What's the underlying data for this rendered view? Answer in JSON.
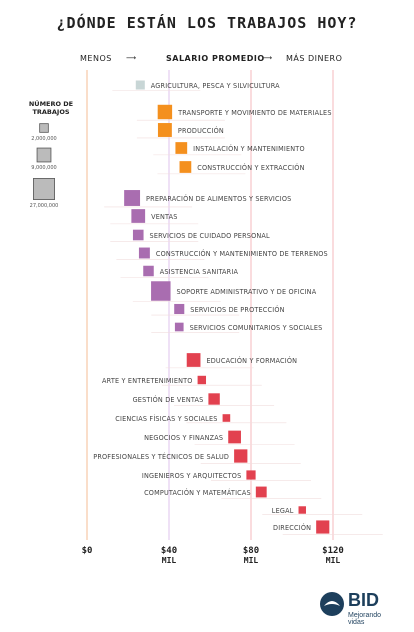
{
  "title": "¿DÓNDE ESTÁN LOS TRABAJOS HOY?",
  "header": {
    "left": "MENOS",
    "center": "SALARIO PROMEDIO",
    "right": "MÁS DINERO"
  },
  "legend": {
    "title": "NÚMERO DE TRABAJOS",
    "items": [
      {
        "label": "2,000,000",
        "value": 2000000
      },
      {
        "label": "9,000,000",
        "value": 9000000
      },
      {
        "label": "27,000,000",
        "value": 27000000
      }
    ]
  },
  "brand": {
    "name": "BID",
    "tagline": "Mejorando vidas"
  },
  "chart_data": {
    "type": "scatter",
    "x_axis": {
      "range": [
        0,
        130000
      ],
      "ticks": [
        {
          "value": 0,
          "label": "$0",
          "sub": ""
        },
        {
          "value": 40000,
          "label": "$40",
          "sub": "MIL"
        },
        {
          "value": 80000,
          "label": "$80",
          "sub": "MIL"
        },
        {
          "value": 120000,
          "label": "$120",
          "sub": "MIL"
        }
      ]
    },
    "size_encodes": "Número de trabajos",
    "colors": {
      "gray": "#c8d6d6",
      "orange": "#f4901e",
      "purple": "#a96db0",
      "red": "#e2414f"
    },
    "groups": [
      {
        "color": "gray",
        "points": [
          {
            "label": "AGRICULTURA, PESCA Y SILVICULTURA",
            "salary": 26000,
            "jobs": 2300000,
            "label_side": "right"
          }
        ]
      },
      {
        "color": "orange",
        "points": [
          {
            "label": "TRANSPORTE Y MOVIMIENTO DE MATERIALES",
            "salary": 38000,
            "jobs": 10000000,
            "label_side": "right"
          },
          {
            "label": "PRODUCCIÓN",
            "salary": 38000,
            "jobs": 9000000,
            "label_side": "right"
          },
          {
            "label": "INSTALACIÓN Y MANTENIMIENTO",
            "salary": 46000,
            "jobs": 5500000,
            "label_side": "right"
          },
          {
            "label": "CONSTRUCCIÓN Y EXTRACCIÓN",
            "salary": 48000,
            "jobs": 5500000,
            "label_side": "right"
          }
        ]
      },
      {
        "color": "purple",
        "points": [
          {
            "label": "PREPARACIÓN DE ALIMENTOS Y SERVICIOS",
            "salary": 22000,
            "jobs": 13000000,
            "label_side": "right"
          },
          {
            "label": "VENTAS",
            "salary": 25000,
            "jobs": 8700000,
            "label_side": "right"
          },
          {
            "label": "SERVICIOS DE CUIDADO PERSONAL",
            "salary": 25000,
            "jobs": 4000000,
            "label_side": "right"
          },
          {
            "label": "CONSTRUCCIÓN Y MANTENIMIENTO DE TERRENOS",
            "salary": 28000,
            "jobs": 4400000,
            "label_side": "right"
          },
          {
            "label": "ASISTENCIA SANITARIA",
            "salary": 30000,
            "jobs": 3900000,
            "label_side": "right"
          },
          {
            "label": "SOPORTE ADMINISTRATIVO Y DE OFICINA",
            "salary": 36000,
            "jobs": 22000000,
            "label_side": "right"
          },
          {
            "label": "SERVICIOS DE PROTECCIÓN",
            "salary": 45000,
            "jobs": 3400000,
            "label_side": "right"
          },
          {
            "label": "SERVICIOS COMUNITARIOS Y SOCIALES",
            "salary": 45000,
            "jobs": 2000000,
            "label_side": "right"
          }
        ]
      },
      {
        "color": "red",
        "points": [
          {
            "label": "EDUCACIÓN Y FORMACIÓN",
            "salary": 52000,
            "jobs": 8700000,
            "label_side": "right"
          },
          {
            "label": "ARTE Y ENTRETENIMIENTO",
            "salary": 56000,
            "jobs": 1800000,
            "label_side": "left"
          },
          {
            "label": "GESTIÓN DE VENTAS",
            "salary": 62000,
            "jobs": 5000000,
            "label_side": "left"
          },
          {
            "label": "CIENCIAS FÍSICAS Y SOCIALES",
            "salary": 68000,
            "jobs": 1200000,
            "label_side": "left"
          },
          {
            "label": "NEGOCIOS Y FINANZAS",
            "salary": 72000,
            "jobs": 7000000,
            "label_side": "left"
          },
          {
            "label": "PROFESIONALES Y TÉCNICOS DE SALUD",
            "salary": 75000,
            "jobs": 7900000,
            "label_side": "left"
          },
          {
            "label": "INGENIEROS Y ARQUITECTOS",
            "salary": 80000,
            "jobs": 2500000,
            "label_side": "left"
          },
          {
            "label": "COMPUTACIÓN Y MATEMÁTICAS",
            "salary": 85000,
            "jobs": 4300000,
            "label_side": "left"
          },
          {
            "label": "LEGAL",
            "salary": 105000,
            "jobs": 1100000,
            "label_side": "left"
          },
          {
            "label": "DIRECCIÓN",
            "salary": 115000,
            "jobs": 7700000,
            "label_side": "left"
          }
        ]
      }
    ]
  }
}
